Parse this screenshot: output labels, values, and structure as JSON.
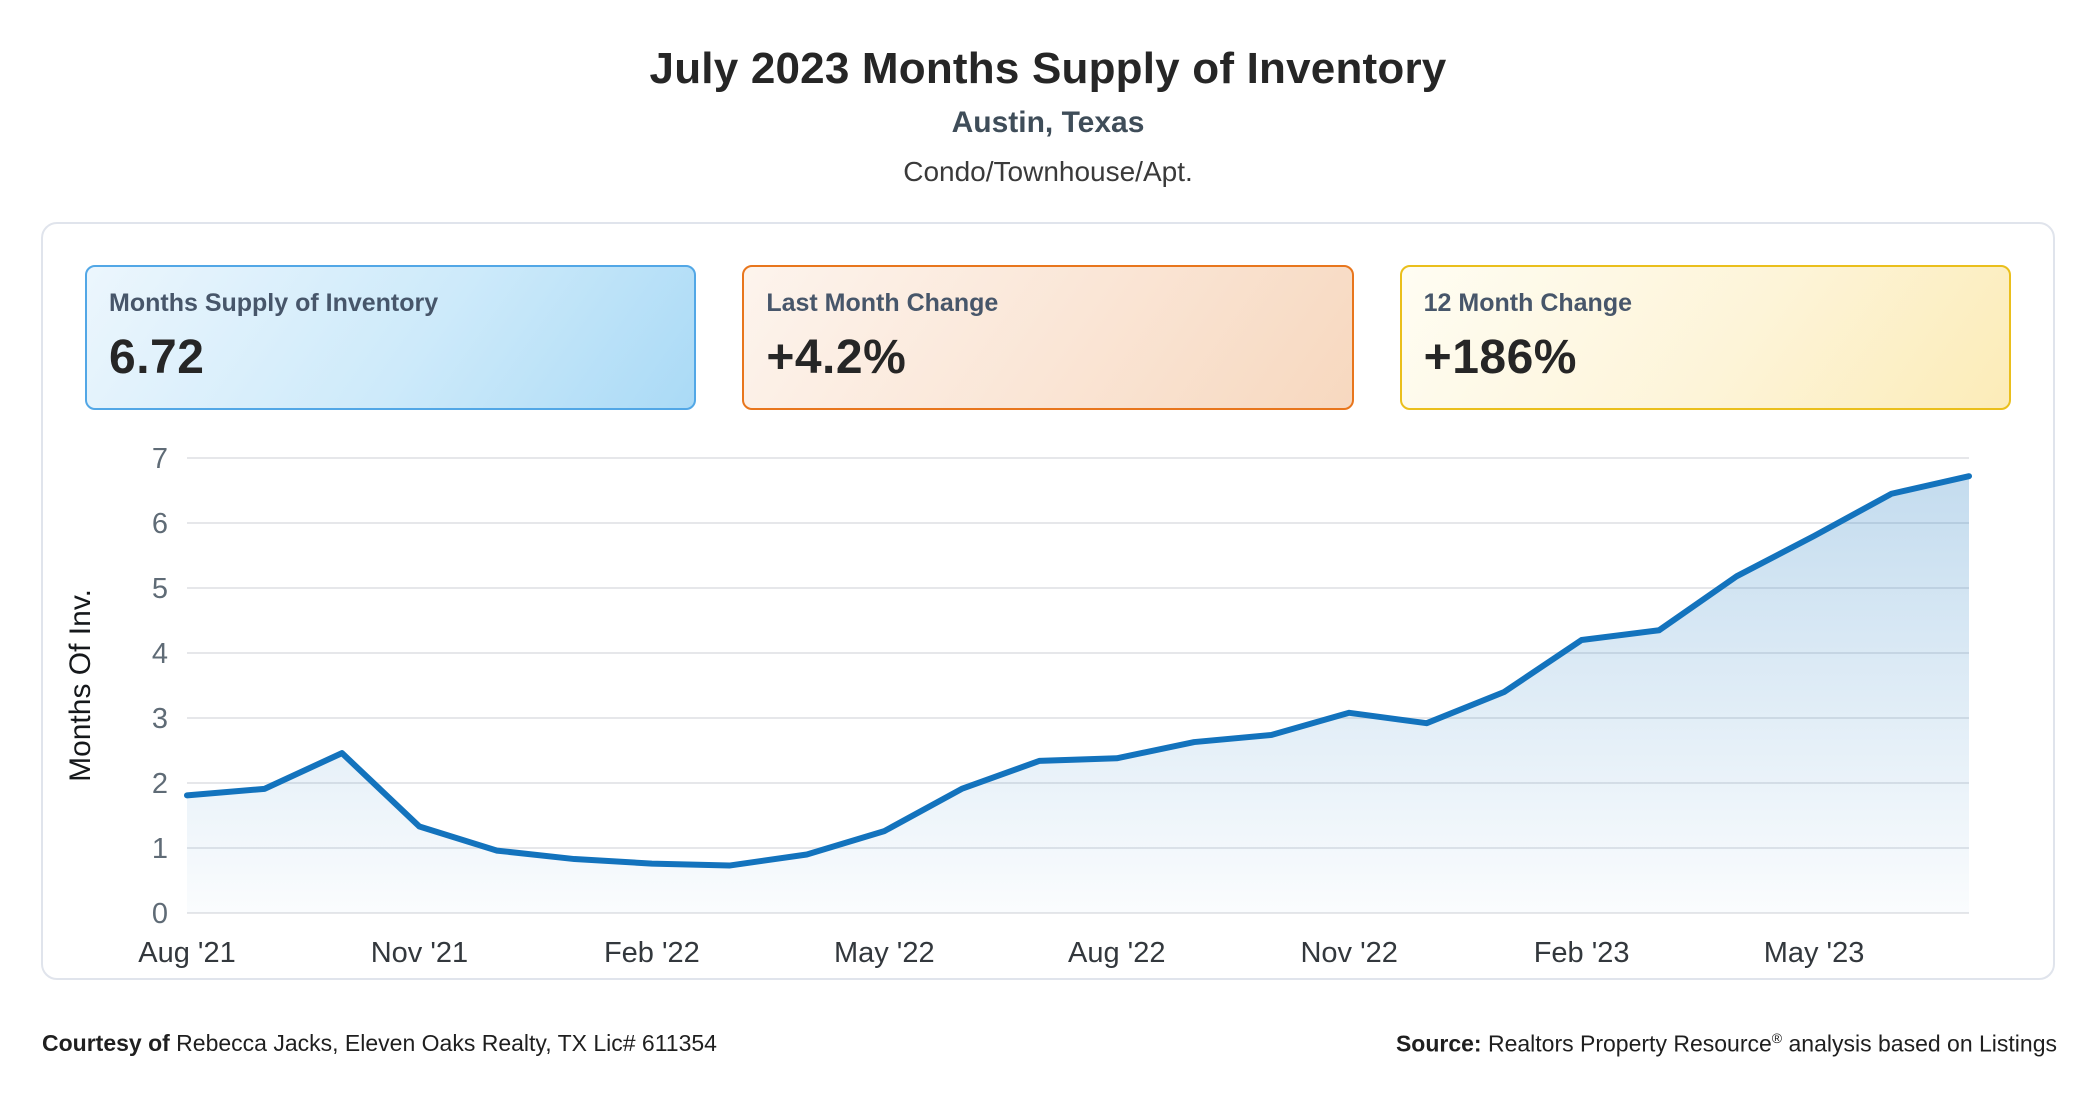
{
  "header": {
    "title": "July 2023 Months Supply of Inventory",
    "subtitle": "Austin, Texas",
    "property_type": "Condo/Townhouse/Apt."
  },
  "cards": [
    {
      "label": "Months Supply of Inventory",
      "value": "6.72"
    },
    {
      "label": "Last Month Change",
      "value": "+4.2%"
    },
    {
      "label": "12 Month Change",
      "value": "+186%"
    }
  ],
  "colors": {
    "line_blue": "#1373bd",
    "card_blue_border": "#52a7e6",
    "card_orange_border": "#e8761d",
    "card_yellow_border": "#eabf1c",
    "gridline": "#e6e7ea"
  },
  "chart_data": {
    "type": "area",
    "title": "July 2023 Months Supply of Inventory",
    "xlabel": "",
    "ylabel": "Months Of Inv.",
    "ylim": [
      0,
      7
    ],
    "grid": true,
    "legend": "none",
    "y_ticks": [
      0,
      1,
      2,
      3,
      4,
      5,
      6,
      7
    ],
    "x_tick_labels": [
      "Aug '21",
      "Nov '21",
      "Feb '22",
      "May '22",
      "Aug '22",
      "Nov '22",
      "Feb '23",
      "May '23"
    ],
    "x_tick_positions": [
      0,
      3,
      6,
      9,
      12,
      15,
      18,
      21
    ],
    "x": [
      "Aug '21",
      "Sep '21",
      "Oct '21",
      "Nov '21",
      "Dec '21",
      "Jan '22",
      "Feb '22",
      "Mar '22",
      "Apr '22",
      "May '22",
      "Jun '22",
      "Jul '22",
      "Aug '22",
      "Sep '22",
      "Oct '22",
      "Nov '22",
      "Dec '22",
      "Jan '23",
      "Feb '23",
      "Mar '23",
      "Apr '23",
      "May '23",
      "Jun '23",
      "Jul '23"
    ],
    "values": [
      1.81,
      1.91,
      2.46,
      1.33,
      0.96,
      0.83,
      0.76,
      0.73,
      0.9,
      1.26,
      1.91,
      2.34,
      2.38,
      2.63,
      2.74,
      3.08,
      2.92,
      3.4,
      4.2,
      4.35,
      5.18,
      5.8,
      6.45,
      6.72
    ]
  },
  "footer": {
    "left_bold": "Courtesy of",
    "left_text": " Rebecca Jacks, Eleven Oaks Realty, TX Lic# 611354",
    "right_bold": "Source:",
    "right_pre": " Realtors Property Resource",
    "right_sup": "®",
    "right_post": " analysis based on Listings"
  }
}
